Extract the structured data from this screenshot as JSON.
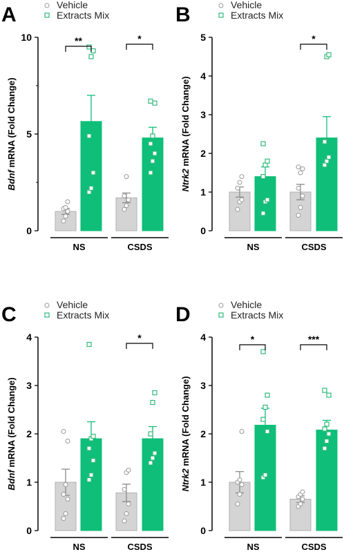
{
  "colors": {
    "vehicle_fill": "#d4d4d4",
    "vehicle_stroke": "#b0b0b0",
    "extract_fill": "#0fbe78",
    "extract_point": "#2fb97a",
    "axis": "#000000",
    "point_vehicle": "#9a9a9a"
  },
  "legend": {
    "vehicle_label": "Vehicle",
    "extract_label": "Extracts Mix",
    "placement": "top"
  },
  "chart_data": [
    {
      "panel_letter": "A",
      "type": "bar",
      "ylabel_gene": "Bdnf",
      "ylabel_rest": " mRNA (Fold Change)",
      "ylim": [
        0,
        10
      ],
      "yticks": [
        0,
        5,
        10
      ],
      "yminor": [
        2.5,
        7.5
      ],
      "groups": [
        "NS",
        "CSDS"
      ],
      "series": [
        {
          "name": "Vehicle",
          "means": [
            1.0,
            1.7
          ],
          "sem": [
            0.15,
            0.25
          ],
          "points": [
            [
              0.5,
              0.75,
              1.0,
              1.15,
              1.2,
              1.5
            ],
            [
              1.1,
              1.3,
              1.6,
              1.8,
              2.8
            ]
          ]
        },
        {
          "name": "Extracts Mix",
          "means": [
            5.65,
            4.8
          ],
          "sem": [
            1.35,
            0.55
          ],
          "points": [
            [
              2.0,
              2.2,
              3.0,
              4.9,
              9.0,
              9.3,
              9.5
            ],
            [
              3.0,
              3.6,
              4.0,
              4.5,
              4.9,
              6.6,
              6.7
            ]
          ]
        }
      ],
      "significance": [
        "**",
        "*"
      ]
    },
    {
      "panel_letter": "B",
      "type": "bar",
      "ylabel_gene": "Ntrk2",
      "ylabel_rest": " mRNA (Fold Change)",
      "ylim": [
        0,
        5
      ],
      "yticks": [
        0,
        1,
        2,
        3,
        4,
        5
      ],
      "groups": [
        "NS",
        "CSDS"
      ],
      "series": [
        {
          "name": "Vehicle",
          "means": [
            1.0,
            1.0
          ],
          "sem": [
            0.13,
            0.2
          ],
          "points": [
            [
              0.55,
              0.75,
              0.8,
              1.1,
              1.25,
              1.4
            ],
            [
              0.4,
              0.6,
              0.9,
              1.1,
              1.5,
              1.6,
              1.65
            ]
          ]
        },
        {
          "name": "Extracts Mix",
          "means": [
            1.4,
            2.4
          ],
          "sem": [
            0.25,
            0.55
          ],
          "points": [
            [
              0.45,
              0.75,
              0.8,
              1.4,
              1.7,
              1.8,
              2.25
            ],
            [
              1.7,
              1.8,
              1.9,
              2.3,
              4.5,
              4.55
            ]
          ]
        }
      ],
      "significance": [
        null,
        "*"
      ]
    },
    {
      "panel_letter": "C",
      "type": "bar",
      "ylabel_gene": "Bdnf",
      "ylabel_rest": " mRNA (Fold Change)",
      "ylim": [
        0,
        4
      ],
      "yticks": [
        0,
        1,
        2,
        3,
        4
      ],
      "groups": [
        "NS",
        "CSDS"
      ],
      "series": [
        {
          "name": "Vehicle",
          "means": [
            1.0,
            0.78
          ],
          "sem": [
            0.27,
            0.18
          ],
          "points": [
            [
              0.25,
              0.35,
              0.65,
              0.75,
              0.95,
              1.85,
              2.05
            ],
            [
              0.2,
              0.35,
              0.55,
              0.85,
              1.2,
              1.25
            ]
          ]
        },
        {
          "name": "Extracts Mix",
          "means": [
            1.9,
            1.9
          ],
          "sem": [
            0.35,
            0.25
          ],
          "points": [
            [
              1.05,
              1.15,
              1.45,
              1.7,
              1.9,
              1.95,
              3.85
            ],
            [
              1.4,
              1.5,
              1.6,
              2.0,
              2.65,
              2.85
            ]
          ]
        }
      ],
      "significance": [
        null,
        "*"
      ]
    },
    {
      "panel_letter": "D",
      "type": "bar",
      "ylabel_gene": "Ntrk2",
      "ylabel_rest": " mRNA (Fold Change)",
      "ylim": [
        0,
        4
      ],
      "yticks": [
        0,
        1,
        2,
        3,
        4
      ],
      "groups": [
        "NS",
        "CSDS"
      ],
      "series": [
        {
          "name": "Vehicle",
          "means": [
            1.0,
            0.65
          ],
          "sem": [
            0.22,
            0.07
          ],
          "points": [
            [
              0.55,
              0.75,
              0.95,
              1.0,
              1.05,
              2.05
            ],
            [
              0.5,
              0.55,
              0.65,
              0.7,
              0.75,
              0.8
            ]
          ]
        },
        {
          "name": "Extracts Mix",
          "means": [
            2.18,
            2.08
          ],
          "sem": [
            0.35,
            0.2
          ],
          "points": [
            [
              1.1,
              1.15,
              2.05,
              2.3,
              2.55,
              2.8,
              3.7
            ],
            [
              1.7,
              1.85,
              2.0,
              2.1,
              2.2,
              2.8,
              2.9
            ]
          ]
        }
      ],
      "significance": [
        "*",
        "***"
      ]
    }
  ]
}
